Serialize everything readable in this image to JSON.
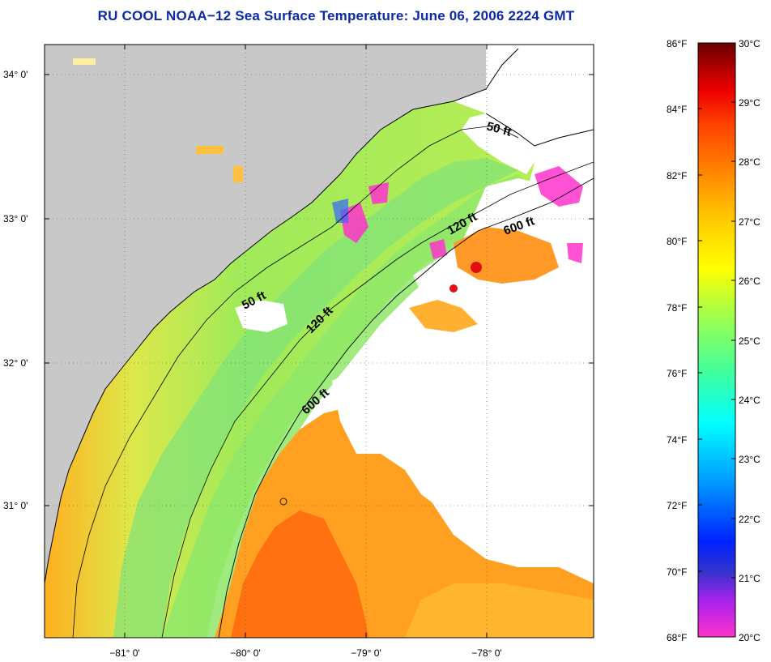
{
  "title": "RU COOL  NOAA−12  Sea Surface Temperature:  June 06, 2006 2224 GMT",
  "map": {
    "lat_ticks": [
      "34° 0'",
      "33° 0'",
      "32° 0'",
      "31° 0'"
    ],
    "lon_ticks": [
      "−81° 0'",
      "−80° 0'",
      "−79° 0'",
      "−78° 0'"
    ],
    "contour_labels": [
      "50 ft",
      "120 ft",
      "600 ft",
      "50 ft",
      "120 ft",
      "600 ft"
    ],
    "colors": {
      "land": "#c8c8c8",
      "cloud": "#ffffff"
    }
  },
  "colorbar": {
    "fahrenheit": [
      "86°F",
      "84°F",
      "82°F",
      "80°F",
      "78°F",
      "76°F",
      "74°F",
      "72°F",
      "70°F",
      "68°F"
    ],
    "celsius": [
      "30°C",
      "29°C",
      "28°C",
      "27°C",
      "26°C",
      "25°C",
      "24°C",
      "23°C",
      "22°C",
      "21°C",
      "20°C"
    ],
    "colors": [
      "#ff33cc",
      "#aa22ee",
      "#3333cc",
      "#0044ff",
      "#0099ff",
      "#00ffff",
      "#33ff99",
      "#88ff44",
      "#ffff00",
      "#ffcc00",
      "#ff9900",
      "#ff6600",
      "#ff0000",
      "#cc0000",
      "#7a0000"
    ]
  }
}
